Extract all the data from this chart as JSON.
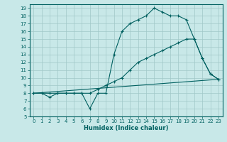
{
  "bg_color": "#c8e8e8",
  "grid_color": "#a0c8c8",
  "line_color": "#006060",
  "xlabel": "Humidex (Indice chaleur)",
  "xlim": [
    -0.5,
    23.5
  ],
  "ylim": [
    5,
    19.5
  ],
  "xticks": [
    0,
    1,
    2,
    3,
    4,
    5,
    6,
    7,
    8,
    9,
    10,
    11,
    12,
    13,
    14,
    15,
    16,
    17,
    18,
    19,
    20,
    21,
    22,
    23
  ],
  "yticks": [
    5,
    6,
    7,
    8,
    9,
    10,
    11,
    12,
    13,
    14,
    15,
    16,
    17,
    18,
    19
  ],
  "series": [
    {
      "x": [
        0,
        1,
        2,
        3,
        4,
        5,
        6,
        7,
        8,
        9,
        10,
        11,
        12,
        13,
        14,
        15,
        16,
        17,
        18,
        19,
        20,
        21,
        22,
        23
      ],
      "y": [
        8,
        8,
        7.5,
        8,
        8,
        8,
        8,
        6,
        8,
        8,
        13,
        16,
        17,
        17.5,
        18,
        19,
        18.5,
        18,
        18,
        17.5,
        15,
        12.5,
        10.5,
        9.8
      ],
      "markers": true
    },
    {
      "x": [
        0,
        2,
        3,
        4,
        5,
        6,
        7,
        8,
        9,
        10,
        11,
        12,
        13,
        14,
        15,
        16,
        17,
        18,
        19,
        20,
        21,
        22,
        23
      ],
      "y": [
        8,
        8,
        8,
        8,
        8,
        8,
        8,
        8.5,
        9,
        9.5,
        10,
        11,
        12,
        12.5,
        13,
        13.5,
        14,
        14.5,
        15,
        15,
        12.5,
        10.5,
        9.8
      ],
      "markers": true
    },
    {
      "x": [
        0,
        23
      ],
      "y": [
        8,
        9.8
      ],
      "markers": false
    }
  ]
}
